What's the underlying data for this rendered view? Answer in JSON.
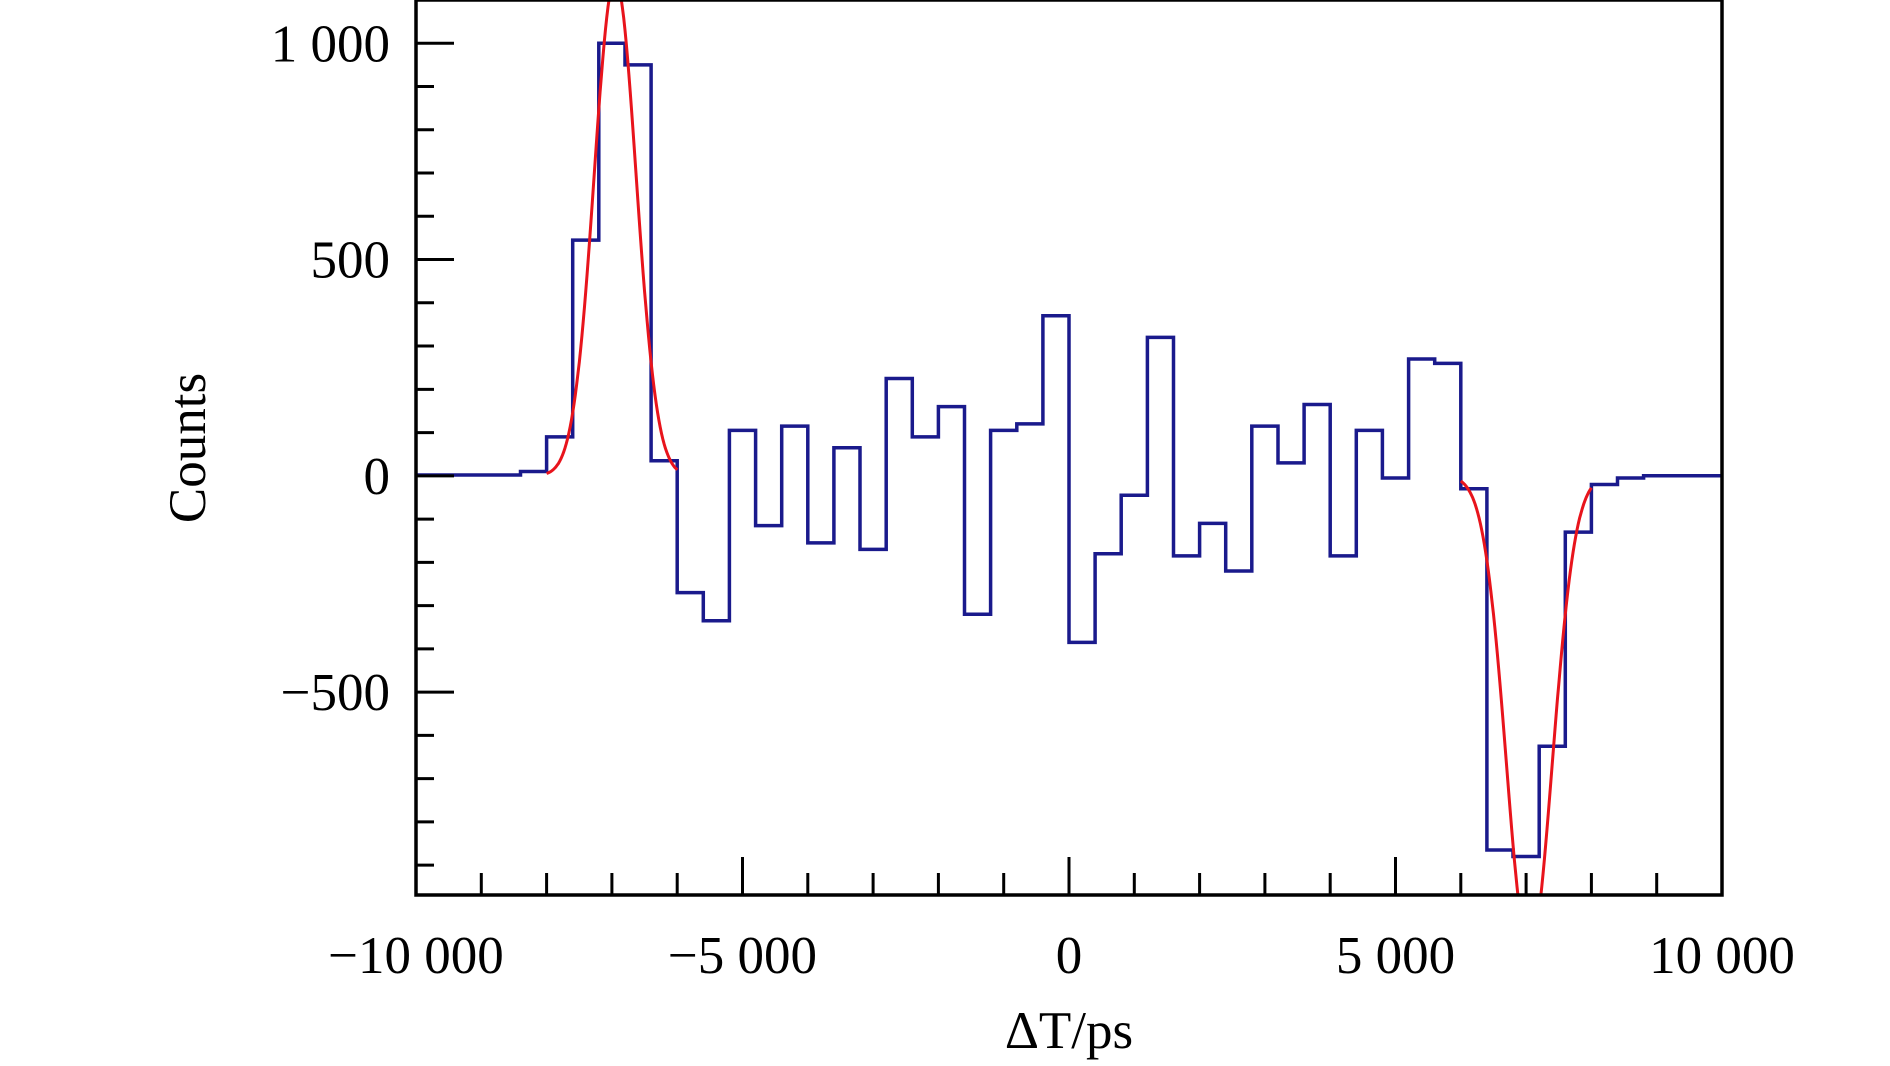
{
  "chart_data": {
    "type": "line",
    "title": "",
    "xlabel": "ΔT/ps",
    "ylabel": "Counts",
    "xlim": [
      -10000,
      10000
    ],
    "ylim": [
      -969,
      1100
    ],
    "grid": false,
    "x_ticks": [
      -10000,
      -5000,
      0,
      5000,
      10000
    ],
    "x_tick_labels": [
      "−10 000",
      "−5 000",
      "0",
      "5 000",
      "10 000"
    ],
    "y_ticks": [
      -500,
      0,
      500,
      1000
    ],
    "y_tick_labels": [
      "−500",
      "0",
      "500",
      "1 000"
    ],
    "series": [
      {
        "name": "histogram",
        "style": "step",
        "color": "#1a1a8c",
        "bin_width": 400,
        "flat_left": {
          "from": -10000,
          "to": -8400,
          "value": 2
        },
        "flat_right": {
          "from": 8800,
          "to": 10000,
          "value": 0
        },
        "bin_start": -8400,
        "values": [
          10,
          90,
          545,
          1000,
          950,
          35,
          -270,
          -335,
          105,
          -115,
          115,
          -155,
          65,
          -170,
          225,
          90,
          160,
          -320,
          105,
          120,
          370,
          -385,
          -180,
          -45,
          320,
          -185,
          -110,
          -220,
          115,
          30,
          165,
          -185,
          105,
          -5,
          270,
          260,
          -30,
          -865,
          -880,
          -625,
          -130,
          -20,
          -5
        ]
      },
      {
        "name": "gaussian-fit-peak",
        "style": "curve",
        "color": "#e8141c",
        "amplitude": 1150,
        "center": -6950,
        "sigma": 320,
        "range": [
          -8000,
          -6000
        ]
      },
      {
        "name": "gaussian-fit-dip",
        "style": "curve",
        "color": "#e8141c",
        "amplitude": -1100,
        "center": 7050,
        "sigma": 350,
        "range": [
          6000,
          8000
        ]
      }
    ]
  }
}
